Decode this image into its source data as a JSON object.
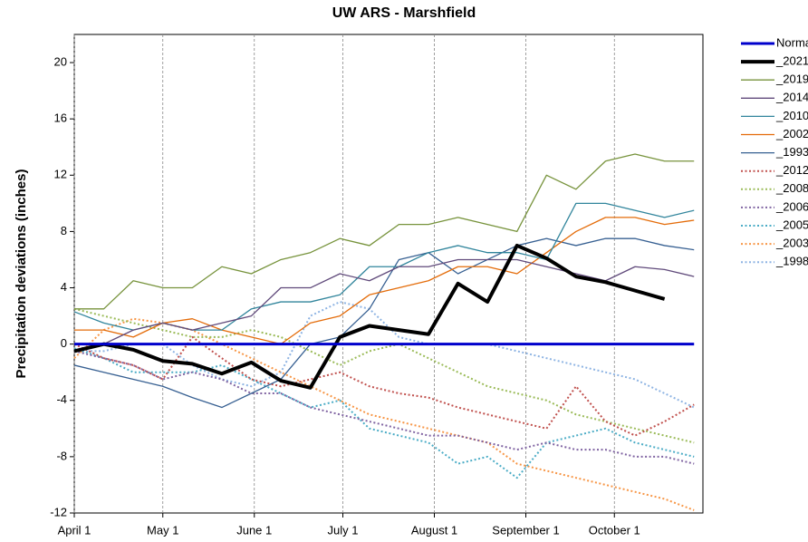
{
  "chart_data": {
    "type": "line",
    "title": "UW ARS - Marshfield",
    "y_label": "Precipitation deviations (inches)",
    "x": [
      0,
      10,
      20,
      30,
      40,
      50,
      60,
      70,
      80,
      90,
      100,
      110,
      120,
      130,
      140,
      150,
      160,
      170,
      180,
      190,
      200,
      210
    ],
    "xlim": [
      0,
      213
    ],
    "xticks": [
      {
        "value": 0,
        "label": "April 1"
      },
      {
        "value": 30,
        "label": "May 1"
      },
      {
        "value": 61,
        "label": "June 1"
      },
      {
        "value": 91,
        "label": "July 1"
      },
      {
        "value": 122,
        "label": "August 1"
      },
      {
        "value": 153,
        "label": "September 1"
      },
      {
        "value": 183,
        "label": "October 1"
      }
    ],
    "ylim": [
      -12,
      22
    ],
    "yticks": [
      -12,
      -8,
      -4,
      0,
      4,
      8,
      12,
      16,
      20
    ],
    "x_grid": true,
    "series": [
      {
        "name": "Normal",
        "color": "#0000cc",
        "width": 3,
        "style": "solid",
        "values": [
          0,
          0,
          0,
          0,
          0,
          0,
          0,
          0,
          0,
          0,
          0,
          0,
          0,
          0,
          0,
          0,
          0,
          0,
          0,
          0,
          0,
          0
        ]
      },
      {
        "name": "_2021",
        "color": "#000000",
        "width": 4,
        "style": "solid",
        "values": [
          -0.5,
          0,
          -0.4,
          -1.2,
          -1.4,
          -2.1,
          -1.3,
          -2.6,
          -3.1,
          0.5,
          1.3,
          1.0,
          0.7,
          4.3,
          3.0,
          7.0,
          6.1,
          4.8,
          4.4,
          3.8,
          3.2,
          null
        ]
      },
      {
        "name": "_2019",
        "color": "#77933c",
        "width": 1.3,
        "style": "solid",
        "values": [
          2.5,
          2.5,
          4.5,
          4,
          4,
          5.5,
          5,
          6,
          6.5,
          7.5,
          7,
          8.5,
          8.5,
          9,
          8.5,
          8,
          12,
          11,
          13,
          13.5,
          13,
          13
        ]
      },
      {
        "name": "_2014",
        "color": "#604a7b",
        "width": 1.3,
        "style": "solid",
        "values": [
          0,
          0,
          1,
          1.5,
          1,
          1.5,
          2,
          4,
          4,
          5,
          4.5,
          5.5,
          5.5,
          6,
          6,
          6,
          5.5,
          5,
          4.5,
          5.5,
          5.3,
          4.8
        ]
      },
      {
        "name": "_2010",
        "color": "#31859c",
        "width": 1.3,
        "style": "solid",
        "values": [
          2.3,
          1.5,
          1,
          1.5,
          1,
          1,
          2.5,
          3,
          3,
          3.5,
          5.5,
          5.5,
          6.5,
          7,
          6.5,
          6.5,
          6,
          10,
          10,
          9.5,
          9,
          9.5
        ]
      },
      {
        "name": "_2002",
        "color": "#e46c0a",
        "width": 1.3,
        "style": "solid",
        "values": [
          1,
          1,
          0.5,
          1.5,
          1.8,
          1,
          0.5,
          0,
          1.5,
          2,
          3.5,
          4,
          4.5,
          5.5,
          5.5,
          5,
          6.5,
          8,
          9,
          9,
          8.5,
          8.8
        ]
      },
      {
        "name": "_1993",
        "color": "#376092",
        "width": 1.3,
        "style": "solid",
        "values": [
          -1.5,
          -2,
          -2.5,
          -3,
          -3.8,
          -4.5,
          -3.5,
          -2.5,
          0,
          0.5,
          2.5,
          6,
          6.5,
          5,
          6,
          7,
          7.5,
          7,
          7.5,
          7.5,
          7,
          6.7
        ]
      },
      {
        "name": "_2012",
        "color": "#c0504d",
        "width": 2,
        "style": "dotted",
        "values": [
          0,
          -1,
          -1.5,
          -2.5,
          0.5,
          -1,
          -2.5,
          -3,
          -2.5,
          -2,
          -3,
          -3.5,
          -3.8,
          -4.5,
          -5,
          -5.5,
          -6,
          -3,
          -5.5,
          -6.5,
          -5.5,
          -4.3
        ]
      },
      {
        "name": "_2008",
        "color": "#9bbb59",
        "width": 2,
        "style": "dotted",
        "values": [
          2.5,
          2,
          1.5,
          1,
          0.5,
          0.5,
          1,
          0.5,
          -0.5,
          -1.5,
          -0.5,
          0,
          -1,
          -2,
          -3,
          -3.5,
          -4,
          -5,
          -5.5,
          -6,
          -6.5,
          -7
        ]
      },
      {
        "name": "_2006",
        "color": "#8064a2",
        "width": 2,
        "style": "dotted",
        "values": [
          -0.5,
          -1,
          -1.5,
          -2.5,
          -2,
          -2.5,
          -3.5,
          -3.5,
          -4.5,
          -5,
          -5.5,
          -6,
          -6.5,
          -6.5,
          -7,
          -7.5,
          -7,
          -7.5,
          -7.5,
          -8,
          -8,
          -8.5
        ]
      },
      {
        "name": "_2005",
        "color": "#4bacc6",
        "width": 2,
        "style": "dotted",
        "values": [
          -0.3,
          -1,
          -2,
          -2,
          -2,
          -1.5,
          -2.5,
          -3.5,
          -4.5,
          -4,
          -6,
          -6.5,
          -7,
          -8.5,
          -8,
          -9.5,
          -7,
          -6.5,
          -6,
          -7,
          -7.5,
          -8
        ]
      },
      {
        "name": "_2003",
        "color": "#f79646",
        "width": 2,
        "style": "dotted",
        "values": [
          -1,
          1,
          1.8,
          1.5,
          1,
          0,
          -1,
          -2,
          -3,
          -4,
          -5,
          -5.5,
          -6,
          -6.5,
          -7,
          -8.5,
          -9,
          -9.5,
          -10,
          -10.5,
          -11,
          -11.8
        ]
      },
      {
        "name": "_1998",
        "color": "#8eb4e3",
        "width": 2,
        "style": "dotted",
        "values": [
          -0.5,
          -0.5,
          0,
          0,
          -1.5,
          -2.5,
          -3,
          -2,
          2,
          3,
          2.5,
          0.5,
          0,
          0,
          0,
          -0.5,
          -1,
          -1.5,
          -2,
          -2.5,
          -3.5,
          -4.5
        ]
      }
    ]
  }
}
